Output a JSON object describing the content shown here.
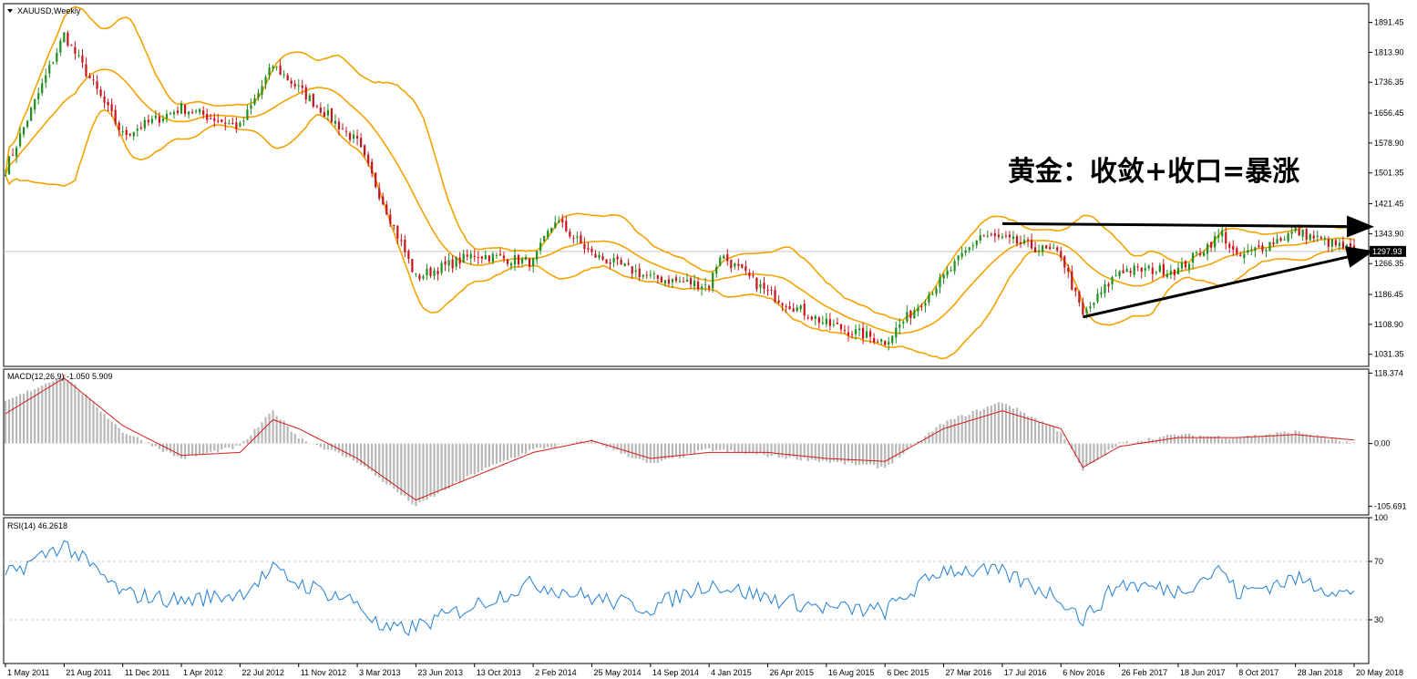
{
  "colors": {
    "bull": "#1f8f1f",
    "bear": "#c8141e",
    "bollinger": "#f5a200",
    "macd_hist": "#b8b8b8",
    "macd_signal": "#d61a1a",
    "rsi": "#1f7fd6",
    "grid": "#c8c8c8",
    "frame": "#000000"
  },
  "annotation": "黄金：收敛+收口=暴涨",
  "chart_data": [
    {
      "type": "candlestick",
      "title": "XAUUSD,Weekly",
      "ylim": [
        1000,
        1940
      ],
      "y_ticks": [
        "1891.45",
        "1813.90",
        "1736.35",
        "1656.45",
        "1578.90",
        "1501.35",
        "1421.45",
        "1343.90",
        "1266.35",
        "1186.45",
        "1108.90",
        "1031.35"
      ],
      "current_price": "1297.93",
      "x_ticks": [
        "1 May 2011",
        "21 Aug 2011",
        "11 Dec 2011",
        "1 Apr 2012",
        "22 Jul 2012",
        "11 Nov 2012",
        "3 Mar 2013",
        "23 Jun 2013",
        "13 Oct 2013",
        "2 Feb 2014",
        "25 May 2014",
        "14 Sep 2014",
        "4 Jan 2015",
        "26 Apr 2015",
        "16 Aug 2015",
        "6 Dec 2015",
        "27 Mar 2016",
        "17 Jul 2016",
        "6 Nov 2016",
        "26 Feb 2017",
        "18 Jun 2017",
        "8 Oct 2017",
        "28 Jan 2018",
        "20 May 2018"
      ],
      "close_anchors": [
        [
          "1 May 2011",
          1510
        ],
        [
          "21 Aug 2011",
          1860
        ],
        [
          "11 Dec 2011",
          1600
        ],
        [
          "1 Apr 2012",
          1670
        ],
        [
          "22 Jul 2012",
          1620
        ],
        [
          "23 Sep 2012",
          1780
        ],
        [
          "11 Nov 2012",
          1720
        ],
        [
          "3 Mar 2013",
          1580
        ],
        [
          "23 Jun 2013",
          1230
        ],
        [
          "13 Oct 2013",
          1290
        ],
        [
          "2 Feb 2014",
          1270
        ],
        [
          "16 Mar 2014",
          1380
        ],
        [
          "25 May 2014",
          1290
        ],
        [
          "14 Sep 2014",
          1230
        ],
        [
          "4 Jan 2015",
          1210
        ],
        [
          "25 Jan 2015",
          1290
        ],
        [
          "26 Apr 2015",
          1190
        ],
        [
          "16 Aug 2015",
          1110
        ],
        [
          "6 Dec 2015",
          1065
        ],
        [
          "27 Mar 2016",
          1230
        ],
        [
          "5 Jun 2016",
          1340
        ],
        [
          "17 Jul 2016",
          1330
        ],
        [
          "6 Nov 2016",
          1290
        ],
        [
          "18 Dec 2016",
          1130
        ],
        [
          "26 Feb 2017",
          1250
        ],
        [
          "18 Jun 2017",
          1250
        ],
        [
          "10 Sep 2017",
          1345
        ],
        [
          "8 Oct 2017",
          1280
        ],
        [
          "28 Jan 2018",
          1350
        ],
        [
          "20 May 2018",
          1297.93
        ]
      ],
      "trendlines": [
        {
          "from": [
            "17 Jul 2016",
            1370
          ],
          "to": [
            "27 May 2018",
            1362
          ],
          "arrow": true
        },
        {
          "from": [
            "18 Dec 2016",
            1128
          ],
          "to": [
            "27 May 2018",
            1296
          ],
          "arrow": true
        }
      ]
    },
    {
      "type": "line",
      "title": "MACD(12,26,9) -1.050 5.909",
      "y_ticks": [
        "118.374",
        "0.00",
        "-105.691"
      ],
      "ylim": [
        -120,
        125
      ],
      "histogram_anchors": [
        [
          "1 May 2011",
          70
        ],
        [
          "21 Aug 2011",
          115
        ],
        [
          "11 Dec 2011",
          20
        ],
        [
          "1 Apr 2012",
          -25
        ],
        [
          "22 Jul 2012",
          -5
        ],
        [
          "23 Sep 2012",
          55
        ],
        [
          "11 Nov 2012",
          10
        ],
        [
          "3 Mar 2013",
          -30
        ],
        [
          "23 Jun 2013",
          -105
        ],
        [
          "13 Oct 2013",
          -50
        ],
        [
          "2 Feb 2014",
          -10
        ],
        [
          "25 May 2014",
          5
        ],
        [
          "14 Sep 2014",
          -35
        ],
        [
          "4 Jan 2015",
          -10
        ],
        [
          "26 Apr 2015",
          -20
        ],
        [
          "16 Aug 2015",
          -30
        ],
        [
          "6 Dec 2015",
          -40
        ],
        [
          "27 Mar 2016",
          35
        ],
        [
          "17 Jul 2016",
          70
        ],
        [
          "6 Nov 2016",
          20
        ],
        [
          "18 Dec 2016",
          -45
        ],
        [
          "26 Feb 2017",
          0
        ],
        [
          "18 Jun 2017",
          15
        ],
        [
          "8 Oct 2017",
          10
        ],
        [
          "28 Jan 2018",
          20
        ],
        [
          "20 May 2018",
          -1.05
        ]
      ],
      "signal_anchors": [
        [
          "1 May 2011",
          50
        ],
        [
          "21 Aug 2011",
          110
        ],
        [
          "11 Dec 2011",
          30
        ],
        [
          "1 Apr 2012",
          -20
        ],
        [
          "22 Jul 2012",
          -15
        ],
        [
          "23 Sep 2012",
          40
        ],
        [
          "11 Nov 2012",
          25
        ],
        [
          "3 Mar 2013",
          -25
        ],
        [
          "23 Jun 2013",
          -95
        ],
        [
          "13 Oct 2013",
          -55
        ],
        [
          "2 Feb 2014",
          -15
        ],
        [
          "25 May 2014",
          5
        ],
        [
          "14 Sep 2014",
          -25
        ],
        [
          "4 Jan 2015",
          -15
        ],
        [
          "26 Apr 2015",
          -15
        ],
        [
          "16 Aug 2015",
          -25
        ],
        [
          "6 Dec 2015",
          -30
        ],
        [
          "27 Mar 2016",
          25
        ],
        [
          "17 Jul 2016",
          55
        ],
        [
          "6 Nov 2016",
          25
        ],
        [
          "18 Dec 2016",
          -40
        ],
        [
          "26 Feb 2017",
          -5
        ],
        [
          "18 Jun 2017",
          10
        ],
        [
          "8 Oct 2017",
          10
        ],
        [
          "28 Jan 2018",
          15
        ],
        [
          "20 May 2018",
          5.909
        ]
      ]
    },
    {
      "type": "line",
      "title": "RSI(14) 46.2618",
      "y_ticks": [
        "100",
        "70",
        "30"
      ],
      "levels": [
        70,
        30
      ],
      "ylim": [
        0,
        100
      ],
      "anchors": [
        [
          "1 May 2011",
          60
        ],
        [
          "21 Aug 2011",
          82
        ],
        [
          "11 Dec 2011",
          48
        ],
        [
          "1 Apr 2012",
          43
        ],
        [
          "22 Jul 2012",
          48
        ],
        [
          "23 Sep 2012",
          64
        ],
        [
          "11 Nov 2012",
          55
        ],
        [
          "3 Mar 2013",
          42
        ],
        [
          "21 Apr 2013",
          22
        ],
        [
          "23 Jun 2013",
          25
        ],
        [
          "13 Oct 2013",
          40
        ],
        [
          "2 Feb 2014",
          55
        ],
        [
          "25 May 2014",
          45
        ],
        [
          "14 Sep 2014",
          38
        ],
        [
          "4 Jan 2015",
          55
        ],
        [
          "26 Apr 2015",
          45
        ],
        [
          "16 Aug 2015",
          38
        ],
        [
          "6 Dec 2015",
          36
        ],
        [
          "27 Mar 2016",
          65
        ],
        [
          "17 Jul 2016",
          62
        ],
        [
          "6 Nov 2016",
          45
        ],
        [
          "18 Dec 2016",
          30
        ],
        [
          "26 Feb 2017",
          55
        ],
        [
          "18 Jun 2017",
          50
        ],
        [
          "10 Sep 2017",
          65
        ],
        [
          "8 Oct 2017",
          48
        ],
        [
          "28 Jan 2018",
          58
        ],
        [
          "20 May 2018",
          46.26
        ]
      ]
    }
  ]
}
